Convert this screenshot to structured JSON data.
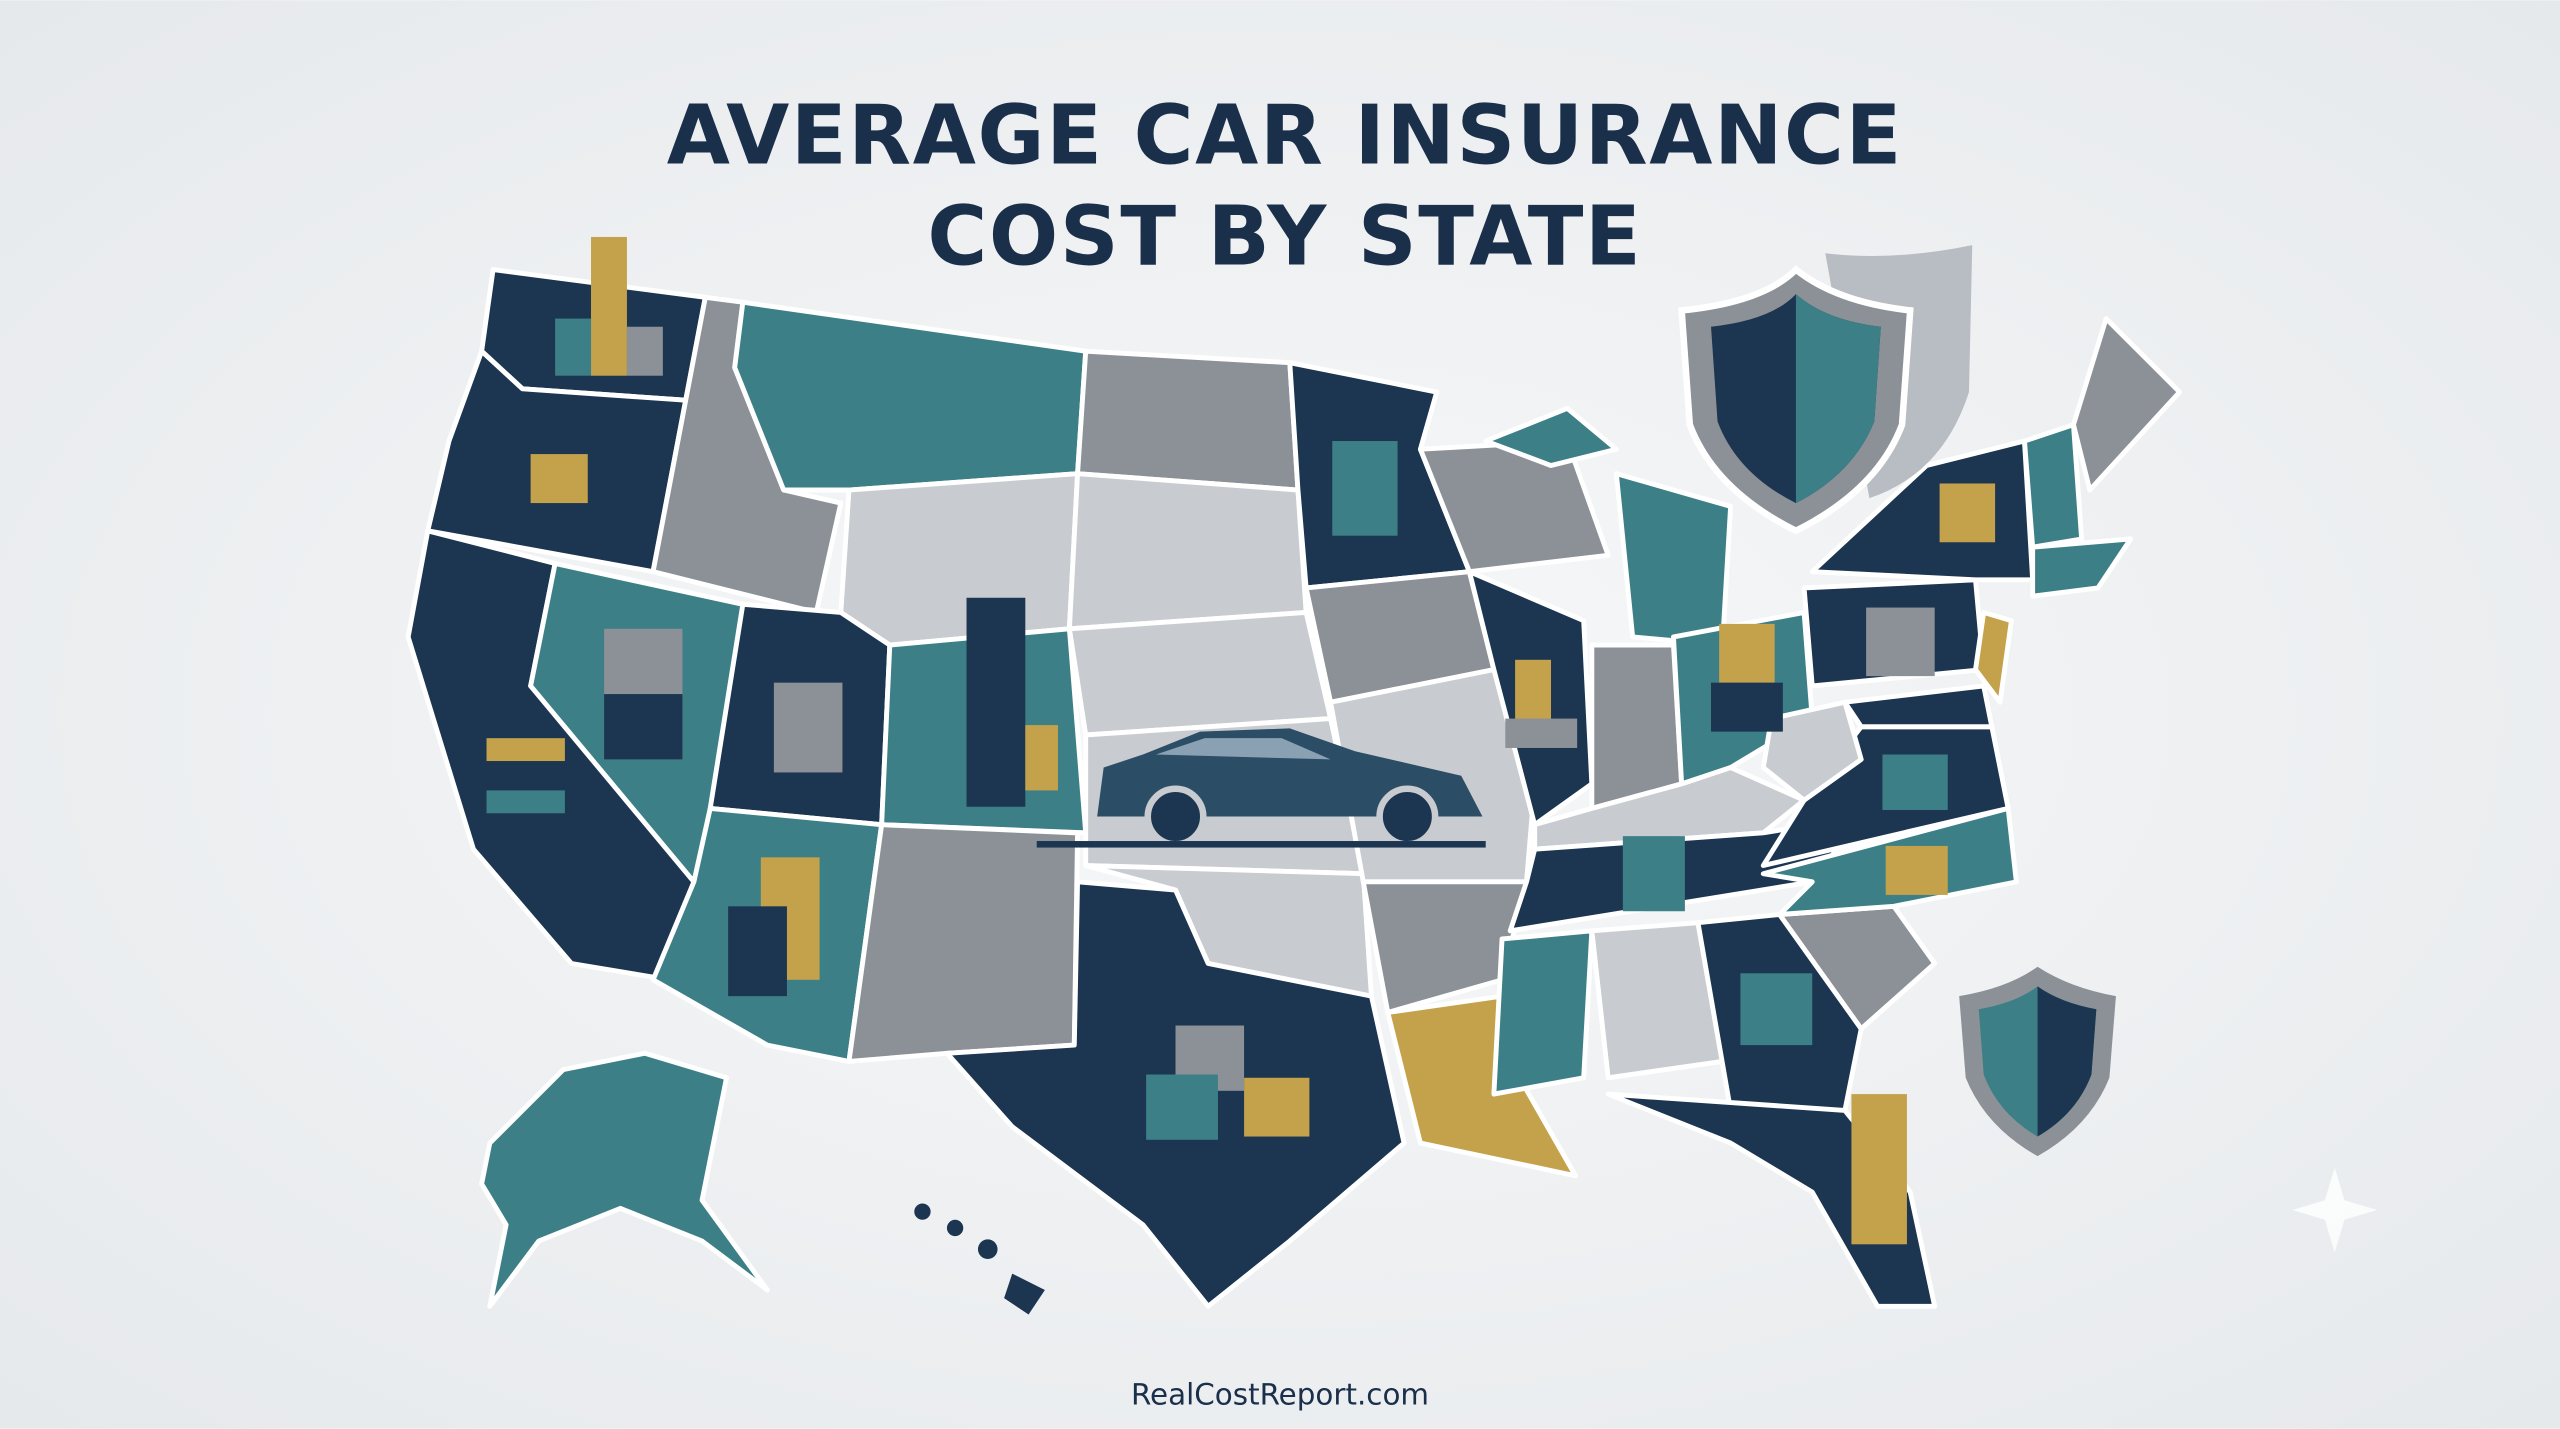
{
  "title": {
    "line1": "AVERAGE CAR INSURANCE",
    "line2": "COST BY STATE"
  },
  "footer": "RealCostReport.com"
}
